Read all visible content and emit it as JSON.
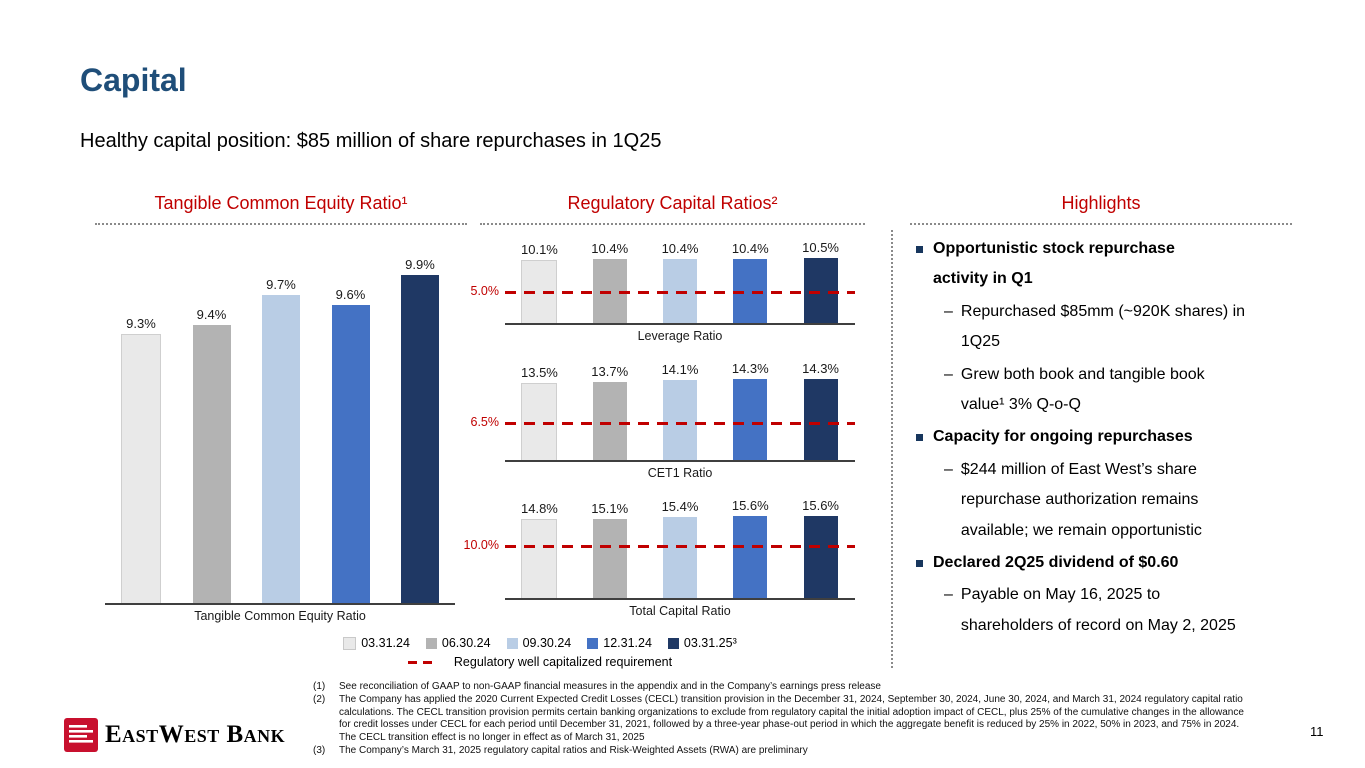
{
  "slide": {
    "title": "Capital",
    "subtitle": "Healthy capital position: $85 million of share repurchases in 1Q25",
    "page_number": "11"
  },
  "sections": {
    "tce": {
      "title": "Tangible Common Equity Ratio¹"
    },
    "regulatory": {
      "title": "Regulatory Capital Ratios²"
    },
    "highlights": {
      "title": "Highlights"
    }
  },
  "series_colors": [
    "#e9e9e9",
    "#b3b3b3",
    "#b9cde5",
    "#4472c4",
    "#1f3864"
  ],
  "chart_data": [
    {
      "type": "bar",
      "title": "Tangible Common Equity Ratio",
      "categories": [
        "03.31.24",
        "06.30.24",
        "09.30.24",
        "12.31.24",
        "03.31.25"
      ],
      "values": [
        9.3,
        9.4,
        9.7,
        9.6,
        9.9
      ],
      "labels": [
        "9.3%",
        "9.4%",
        "9.7%",
        "9.6%",
        "9.9%"
      ],
      "xlabel": "Tangible Common Equity Ratio",
      "ylim": [
        6.6,
        10.05
      ],
      "grid": false,
      "legend_position": "shared-bottom"
    },
    {
      "type": "bar",
      "title": "Leverage Ratio",
      "categories": [
        "03.31.24",
        "06.30.24",
        "09.30.24",
        "12.31.24",
        "03.31.25"
      ],
      "values": [
        10.1,
        10.4,
        10.4,
        10.4,
        10.5
      ],
      "labels": [
        "10.1%",
        "10.4%",
        "10.4%",
        "10.4%",
        "10.5%"
      ],
      "xlabel": "Leverage Ratio",
      "ylim": [
        0,
        11.5
      ],
      "threshold": 5.0,
      "threshold_label": "5.0%",
      "grid": false,
      "legend_position": "shared-bottom"
    },
    {
      "type": "bar",
      "title": "CET1 Ratio",
      "categories": [
        "03.31.24",
        "06.30.24",
        "09.30.24",
        "12.31.24",
        "03.31.25"
      ],
      "values": [
        13.5,
        13.7,
        14.1,
        14.3,
        14.3
      ],
      "labels": [
        "13.5%",
        "13.7%",
        "14.1%",
        "14.3%",
        "14.3%"
      ],
      "xlabel": "CET1 Ratio",
      "ylim": [
        0,
        15.0
      ],
      "threshold": 6.5,
      "threshold_label": "6.5%",
      "grid": false,
      "legend_position": "shared-bottom"
    },
    {
      "type": "bar",
      "title": "Total Capital Ratio",
      "categories": [
        "03.31.24",
        "06.30.24",
        "09.30.24",
        "12.31.24",
        "03.31.25"
      ],
      "values": [
        14.8,
        15.1,
        15.4,
        15.6,
        15.6
      ],
      "labels": [
        "14.8%",
        "15.1%",
        "15.4%",
        "15.6%",
        "15.6%"
      ],
      "xlabel": "Total Capital Ratio",
      "ylim": [
        0,
        16.4
      ],
      "threshold": 10.0,
      "threshold_label": "10.0%",
      "grid": false,
      "legend_position": "shared-bottom"
    }
  ],
  "legend": {
    "items": [
      {
        "label": "03.31.24",
        "color": "#e9e9e9"
      },
      {
        "label": "06.30.24",
        "color": "#b3b3b3"
      },
      {
        "label": "09.30.24",
        "color": "#b9cde5"
      },
      {
        "label": "12.31.24",
        "color": "#4472c4"
      },
      {
        "label": "03.31.25³",
        "color": "#1f3864"
      }
    ],
    "threshold_label": "Regulatory well capitalized requirement",
    "threshold_color": "#c00000"
  },
  "highlights": {
    "items": [
      {
        "heading": "Opportunistic stock repurchase activity in Q1",
        "subitems": [
          "Repurchased $85mm (~920K shares) in 1Q25",
          "Grew both book and tangible book value¹ 3% Q-o-Q"
        ]
      },
      {
        "heading": "Capacity for ongoing repurchases",
        "subitems": [
          "$244 million of East West’s share repurchase authorization remains available; we remain opportunistic"
        ]
      },
      {
        "heading": "Declared 2Q25 dividend of $0.60",
        "subitems": [
          "Payable on May 16, 2025 to shareholders of record on May 2, 2025"
        ]
      }
    ]
  },
  "footnotes": [
    {
      "num": "(1)",
      "text": "See reconciliation of GAAP to non-GAAP financial measures in the appendix and in the Company’s earnings press release"
    },
    {
      "num": "(2)",
      "text": "The Company has applied the 2020 Current Expected Credit Losses (CECL) transition provision in the December 31, 2024, September 30, 2024, June 30, 2024, and March 31, 2024 regulatory capital ratio calculations. The CECL transition provision permits certain banking organizations to exclude from regulatory capital the initial adoption impact of CECL, plus 25% of the cumulative changes in the allowance for credit losses under CECL for each period until December 31, 2021, followed by a three-year phase-out period in which the aggregate benefit is reduced by 25% in 2022, 50% in 2023, and 75% in 2024. The CECL transition effect is no longer in effect as of March 31, 2025"
    },
    {
      "num": "(3)",
      "text": "The Company’s March 31, 2025 regulatory capital ratios and Risk-Weighted Assets (RWA) are preliminary"
    }
  ],
  "logo": {
    "name": "EastWest Bank"
  }
}
